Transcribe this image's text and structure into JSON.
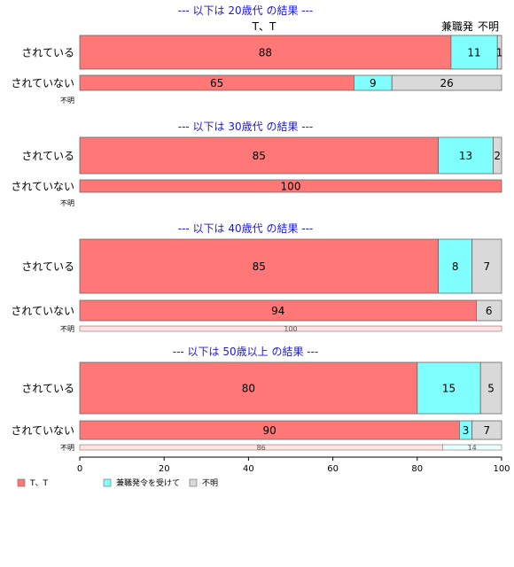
{
  "chart_data": {
    "type": "bar",
    "orientation": "horizontal",
    "stacked": true,
    "xlim": [
      0,
      100
    ],
    "x_ticks": [
      "0",
      "20",
      "40",
      "60",
      "80",
      "100"
    ],
    "column_headers": [
      "T、T",
      "兼職発",
      "不明"
    ],
    "series": [
      {
        "name": "T、T",
        "color": "#ff7777"
      },
      {
        "name": "兼職発令を受けて",
        "color": "#80ffff"
      },
      {
        "name": "不明",
        "color": "#d9d9d9"
      }
    ],
    "panels": [
      {
        "title": "--- 以下は 20歳代 の結果 ---",
        "rows": [
          {
            "label": "されている",
            "values": [
              88,
              11,
              1
            ],
            "value_labels": [
              "88",
              "11",
              "1"
            ]
          },
          {
            "label": "されていない",
            "values": [
              65,
              9,
              26
            ],
            "value_labels": [
              "65",
              "9",
              "26"
            ]
          },
          {
            "label": "不明",
            "values": [],
            "value_labels": []
          }
        ]
      },
      {
        "title": "--- 以下は 30歳代 の結果 ---",
        "rows": [
          {
            "label": "されている",
            "values": [
              85,
              13,
              2
            ],
            "value_labels": [
              "85",
              "13",
              "2"
            ]
          },
          {
            "label": "されていない",
            "values": [
              100,
              0,
              0
            ],
            "value_labels": [
              "100",
              "",
              ""
            ]
          },
          {
            "label": "不明",
            "values": [],
            "value_labels": []
          }
        ]
      },
      {
        "title": "--- 以下は 40歳代 の結果 ---",
        "rows": [
          {
            "label": "されている",
            "values": [
              85,
              8,
              7
            ],
            "value_labels": [
              "85",
              "8",
              "7"
            ]
          },
          {
            "label": "されていない",
            "values": [
              94,
              0,
              6
            ],
            "value_labels": [
              "94",
              "",
              "6"
            ]
          },
          {
            "label": "不明",
            "values": [
              100,
              0,
              0
            ],
            "value_labels": [
              "100",
              "",
              ""
            ]
          }
        ]
      },
      {
        "title": "--- 以下は 50歳以上 の結果 ---",
        "rows": [
          {
            "label": "されている",
            "values": [
              80,
              15,
              5
            ],
            "value_labels": [
              "80",
              "15",
              "5"
            ]
          },
          {
            "label": "されていない",
            "values": [
              90,
              3,
              7
            ],
            "value_labels": [
              "90",
              "3",
              "7"
            ]
          },
          {
            "label": "不明",
            "values": [
              86,
              14,
              0
            ],
            "value_labels": [
              "86",
              "14",
              ""
            ]
          }
        ]
      }
    ],
    "legend_position": "bottom-left",
    "grid": false
  }
}
